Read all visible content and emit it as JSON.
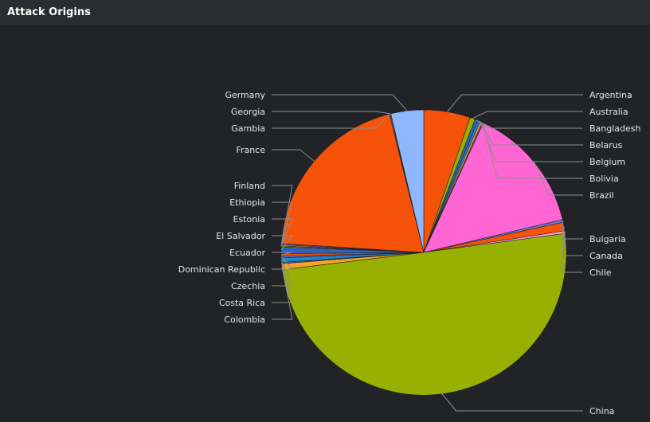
{
  "panel": {
    "title": "Attack Origins"
  },
  "chart_data": {
    "type": "pie",
    "title": "Attack Origins",
    "slices": [
      {
        "label": "Argentina",
        "value": 18.2,
        "color": "#f75209"
      },
      {
        "label": "Australia",
        "value": 2.0,
        "color": "#98b001"
      },
      {
        "label": "Bangladesh",
        "value": 1.2,
        "color": "#3361b8"
      },
      {
        "label": "Belarus",
        "value": 1.0,
        "color": "#1e88c8"
      },
      {
        "label": "Belgium",
        "value": 0.8,
        "color": "#f5a623"
      },
      {
        "label": "Bolivia",
        "value": 0.5,
        "color": "#7d4fc2"
      },
      {
        "label": "Brazil",
        "value": 49.9,
        "color": "#ff66d3"
      },
      {
        "label": "Bulgaria",
        "value": 1.0,
        "color": "#6b7bd6"
      },
      {
        "label": "Canada",
        "value": 3.4,
        "color": "#f75209"
      },
      {
        "label": "Chile",
        "value": 1.0,
        "color": "#ff9cd9"
      },
      {
        "label": "China",
        "value": 173.3,
        "color": "#98b001"
      },
      {
        "label": "Colombia",
        "value": 2.3,
        "color": "#f5a623"
      },
      {
        "label": "Costa Rica",
        "value": 0.5,
        "color": "#7d4fc2"
      },
      {
        "label": "Czechia",
        "value": 1.8,
        "color": "#1e88c8"
      },
      {
        "label": "Dominican Republic",
        "value": 0.6,
        "color": "#6b7bd6"
      },
      {
        "label": "Ecuador",
        "value": 1.0,
        "color": "#f75209"
      },
      {
        "label": "El Salvador",
        "value": 2.6,
        "color": "#3361b8"
      },
      {
        "label": "Estonia",
        "value": 0.4,
        "color": "#98b001"
      },
      {
        "label": "Ethiopia",
        "value": 0.4,
        "color": "#f5a623"
      },
      {
        "label": "Finland",
        "value": 0.5,
        "color": "#7d4fc2"
      },
      {
        "label": "France",
        "value": 69.5,
        "color": "#f75209"
      },
      {
        "label": "Gambia",
        "value": 0.3,
        "color": "#ff9cd9"
      },
      {
        "label": "Georgia",
        "value": 0.3,
        "color": "#b3a36b"
      },
      {
        "label": "Germany",
        "value": 12.8,
        "color": "#8fb7ff"
      }
    ],
    "legend": "none"
  },
  "label_ys": {
    "Argentina": 120,
    "Australia": 141,
    "Bangladesh": 162,
    "Belarus": 183,
    "Belgium": 204,
    "Bolivia": 225,
    "Brazil": 246,
    "Bulgaria": 301,
    "Canada": 322,
    "Chile": 343,
    "China": 517,
    "Colombia": 402,
    "Costa Rica": 381,
    "Czechia": 360,
    "Dominican Republic": 339,
    "Ecuador": 318,
    "El Salvador": 297,
    "Estonia": 276,
    "Ethiopia": 255,
    "Finland": 234,
    "France": 189,
    "Gambia": 162,
    "Georgia": 141,
    "Germany": 120
  }
}
